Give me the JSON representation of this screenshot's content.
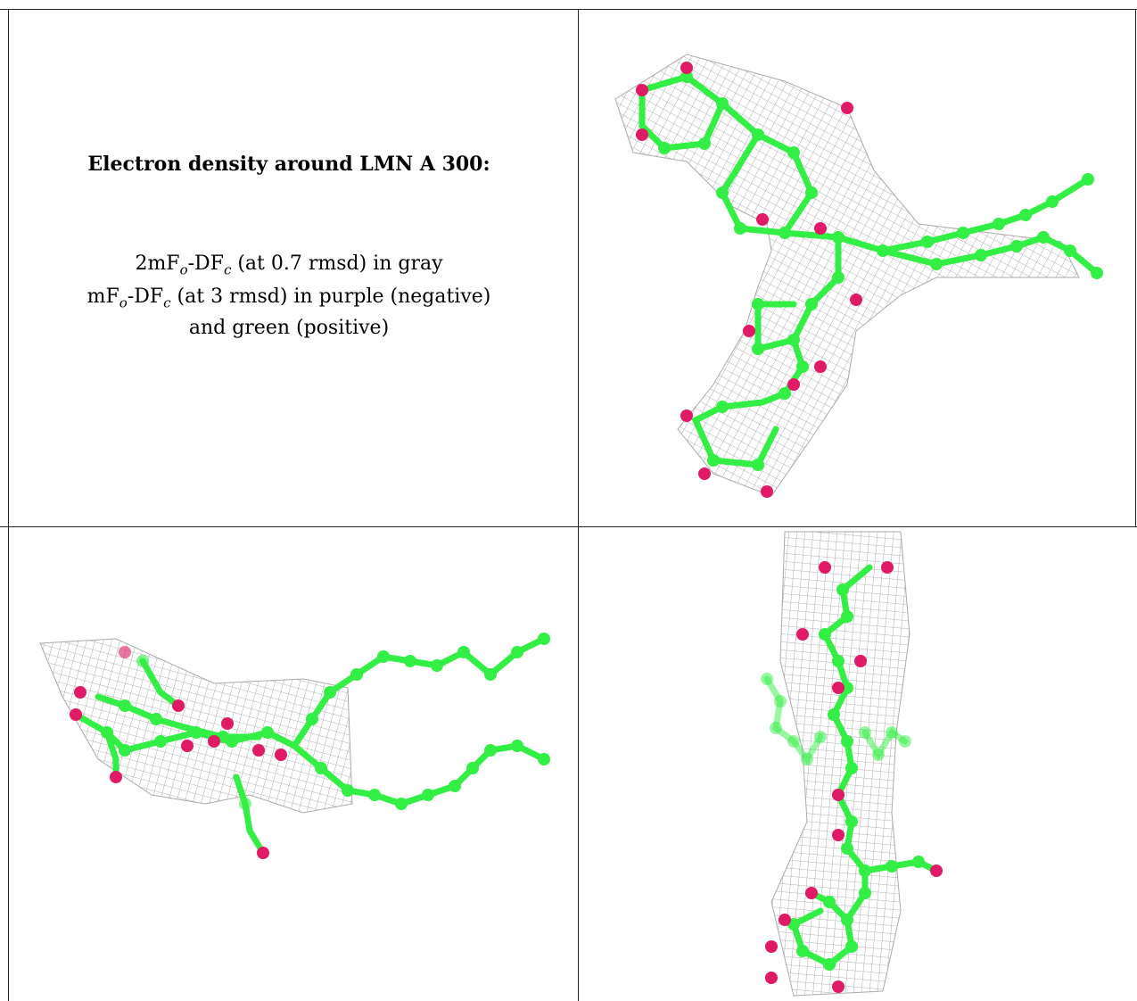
{
  "caption": {
    "title": "Electron density around LMN A 300:",
    "line1": {
      "prefix": "2mF",
      "sub_o": "o",
      "mid": "-DF",
      "sub_c": "c",
      "suffix": " (at 0.7 rmsd) in gray"
    },
    "line2": {
      "prefix": "mF",
      "sub_o": "o",
      "mid": "-DF",
      "sub_c": "c",
      "suffix": " (at 3 rmsd) in purple (negative)"
    },
    "line3": "and green (positive)"
  },
  "colors": {
    "mesh": "#9a9a9a",
    "carbon": "#33ee44",
    "oxygen": "#e01a66",
    "border": "#222222"
  },
  "panels": [
    "molecule-view-top",
    "molecule-view-side",
    "molecule-view-end"
  ]
}
